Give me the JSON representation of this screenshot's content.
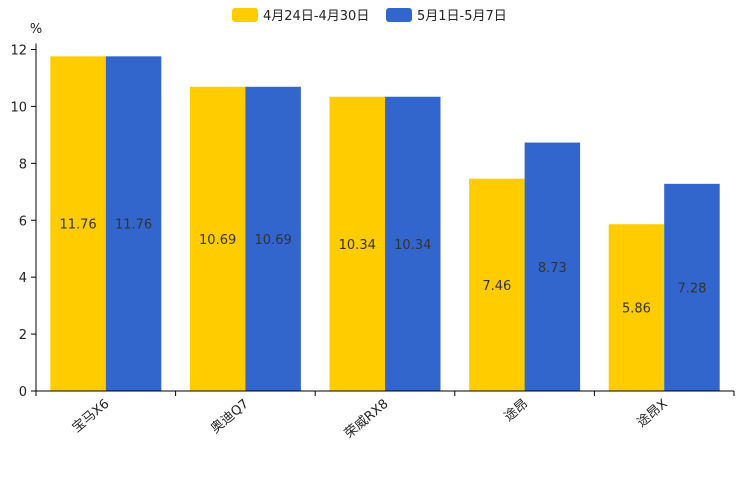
{
  "chart_data": {
    "type": "bar",
    "title": "",
    "xlabel": "",
    "ylabel": "%",
    "ylim": [
      0,
      12
    ],
    "yticks": [
      0,
      2,
      4,
      6,
      8,
      10,
      12
    ],
    "grid": false,
    "legend_position": "top-center",
    "categories": [
      "宝马X6",
      "奥迪Q7",
      "荣威RX8",
      "途昂",
      "途昂X"
    ],
    "series": [
      {
        "name": "4月24日-4月30日",
        "color": "#FFCC00",
        "values": [
          11.76,
          10.69,
          10.34,
          7.46,
          5.86
        ]
      },
      {
        "name": "5月1日-5月7日",
        "color": "#3366CC",
        "values": [
          11.76,
          10.69,
          10.34,
          8.73,
          7.28
        ]
      }
    ]
  }
}
